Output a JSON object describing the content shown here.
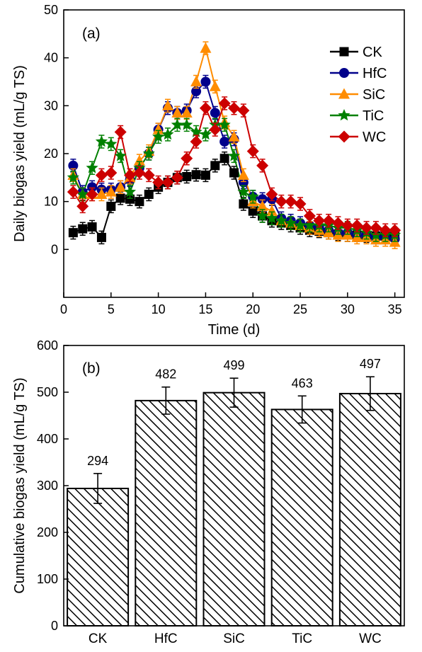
{
  "chart_data": [
    {
      "type": "line",
      "panel_label": "(a)",
      "xlabel": "Time (d)",
      "ylabel": "Daily biogas yield (mL/g TS)",
      "xlim": [
        0,
        36
      ],
      "ylim": [
        -10,
        50
      ],
      "xticks": [
        0,
        5,
        10,
        15,
        20,
        25,
        30,
        35
      ],
      "xtick_labels": [
        "0",
        "5",
        "10",
        "15",
        "20",
        "25",
        "30",
        "35"
      ],
      "yticks": [
        0,
        10,
        20,
        30,
        40,
        50
      ],
      "ytick_labels": [
        "0",
        "10",
        "20",
        "30",
        "40",
        "50"
      ],
      "grid": false,
      "legend_position": "top-right",
      "x": [
        1,
        2,
        3,
        4,
        5,
        6,
        7,
        8,
        9,
        10,
        11,
        12,
        13,
        14,
        15,
        16,
        17,
        18,
        19,
        20,
        21,
        22,
        23,
        24,
        25,
        26,
        27,
        28,
        29,
        30,
        31,
        32,
        33,
        34,
        35
      ],
      "series": [
        {
          "name": "CK",
          "color": "#000000",
          "marker": "square",
          "values": [
            3.5,
            4.3,
            4.7,
            2.5,
            9,
            10.7,
            10.5,
            10,
            11.5,
            13,
            14,
            15,
            15.2,
            15.6,
            15.5,
            17.5,
            19,
            16,
            9.5,
            8,
            7,
            6,
            5.5,
            5,
            4.5,
            4,
            3.8,
            3.5,
            3.2,
            3,
            3,
            2.8,
            2.8,
            2.8,
            2.8
          ]
        },
        {
          "name": "HfC",
          "color": "#00008B",
          "marker": "circle",
          "values": [
            17.5,
            12,
            13,
            12.5,
            12.5,
            13,
            14.5,
            17,
            20,
            25,
            29.5,
            28.5,
            29,
            33,
            35,
            28.5,
            22.5,
            23,
            14,
            11,
            10.5,
            10.5,
            6.5,
            6,
            5.5,
            5,
            4.5,
            4,
            3.5,
            3.5,
            3,
            3,
            2.5,
            2.5,
            2.2
          ]
        },
        {
          "name": "SiC",
          "color": "#FF8C00",
          "marker": "triangle",
          "values": [
            15.5,
            11.5,
            11.5,
            11.5,
            12,
            13,
            15,
            18.5,
            20.5,
            25,
            30,
            28.5,
            28.5,
            35,
            42,
            34,
            26.5,
            23.5,
            15.5,
            10,
            9,
            8,
            6,
            5.5,
            5,
            4.5,
            4,
            3.5,
            3,
            3,
            2.5,
            2.5,
            2,
            2,
            1.5
          ]
        },
        {
          "name": "TiC",
          "color": "#008000",
          "marker": "star",
          "values": [
            15,
            11.5,
            17,
            22.5,
            22,
            19.5,
            12,
            17,
            20,
            23.5,
            24,
            26,
            26,
            24.5,
            24,
            26,
            26,
            19.5,
            12,
            11,
            7,
            6.5,
            6,
            5.5,
            5,
            5,
            5,
            5,
            4.5,
            4.5,
            4,
            3.5,
            3,
            3,
            3
          ]
        },
        {
          "name": "WC",
          "color": "#CC0000",
          "marker": "diamond",
          "values": [
            12,
            9,
            11.5,
            15.5,
            16,
            24.5,
            15.5,
            16,
            15.5,
            14,
            14,
            15,
            19,
            22.5,
            29.5,
            25,
            30.5,
            29.5,
            29,
            20.5,
            17.5,
            11.5,
            10,
            10,
            9.5,
            7,
            6,
            6,
            5.5,
            5,
            5,
            4.5,
            4.5,
            4,
            4
          ]
        }
      ]
    },
    {
      "type": "bar",
      "panel_label": "(b)",
      "xlabel": "",
      "ylabel": "Cumulative biogas yield (mL/g TS)",
      "ylim": [
        0,
        600
      ],
      "yticks": [
        0,
        100,
        200,
        300,
        400,
        500,
        600
      ],
      "ytick_labels": [
        "0",
        "100",
        "200",
        "300",
        "400",
        "500",
        "600"
      ],
      "grid": false,
      "categories": [
        "CK",
        "HfC",
        "SiC",
        "TiC",
        "WC"
      ],
      "values": [
        294,
        482,
        499,
        463,
        497
      ],
      "value_labels": [
        "294",
        "482",
        "499",
        "463",
        "497"
      ],
      "error": [
        32,
        29,
        31,
        29,
        36
      ],
      "fill": "diagonal-hatch"
    }
  ]
}
